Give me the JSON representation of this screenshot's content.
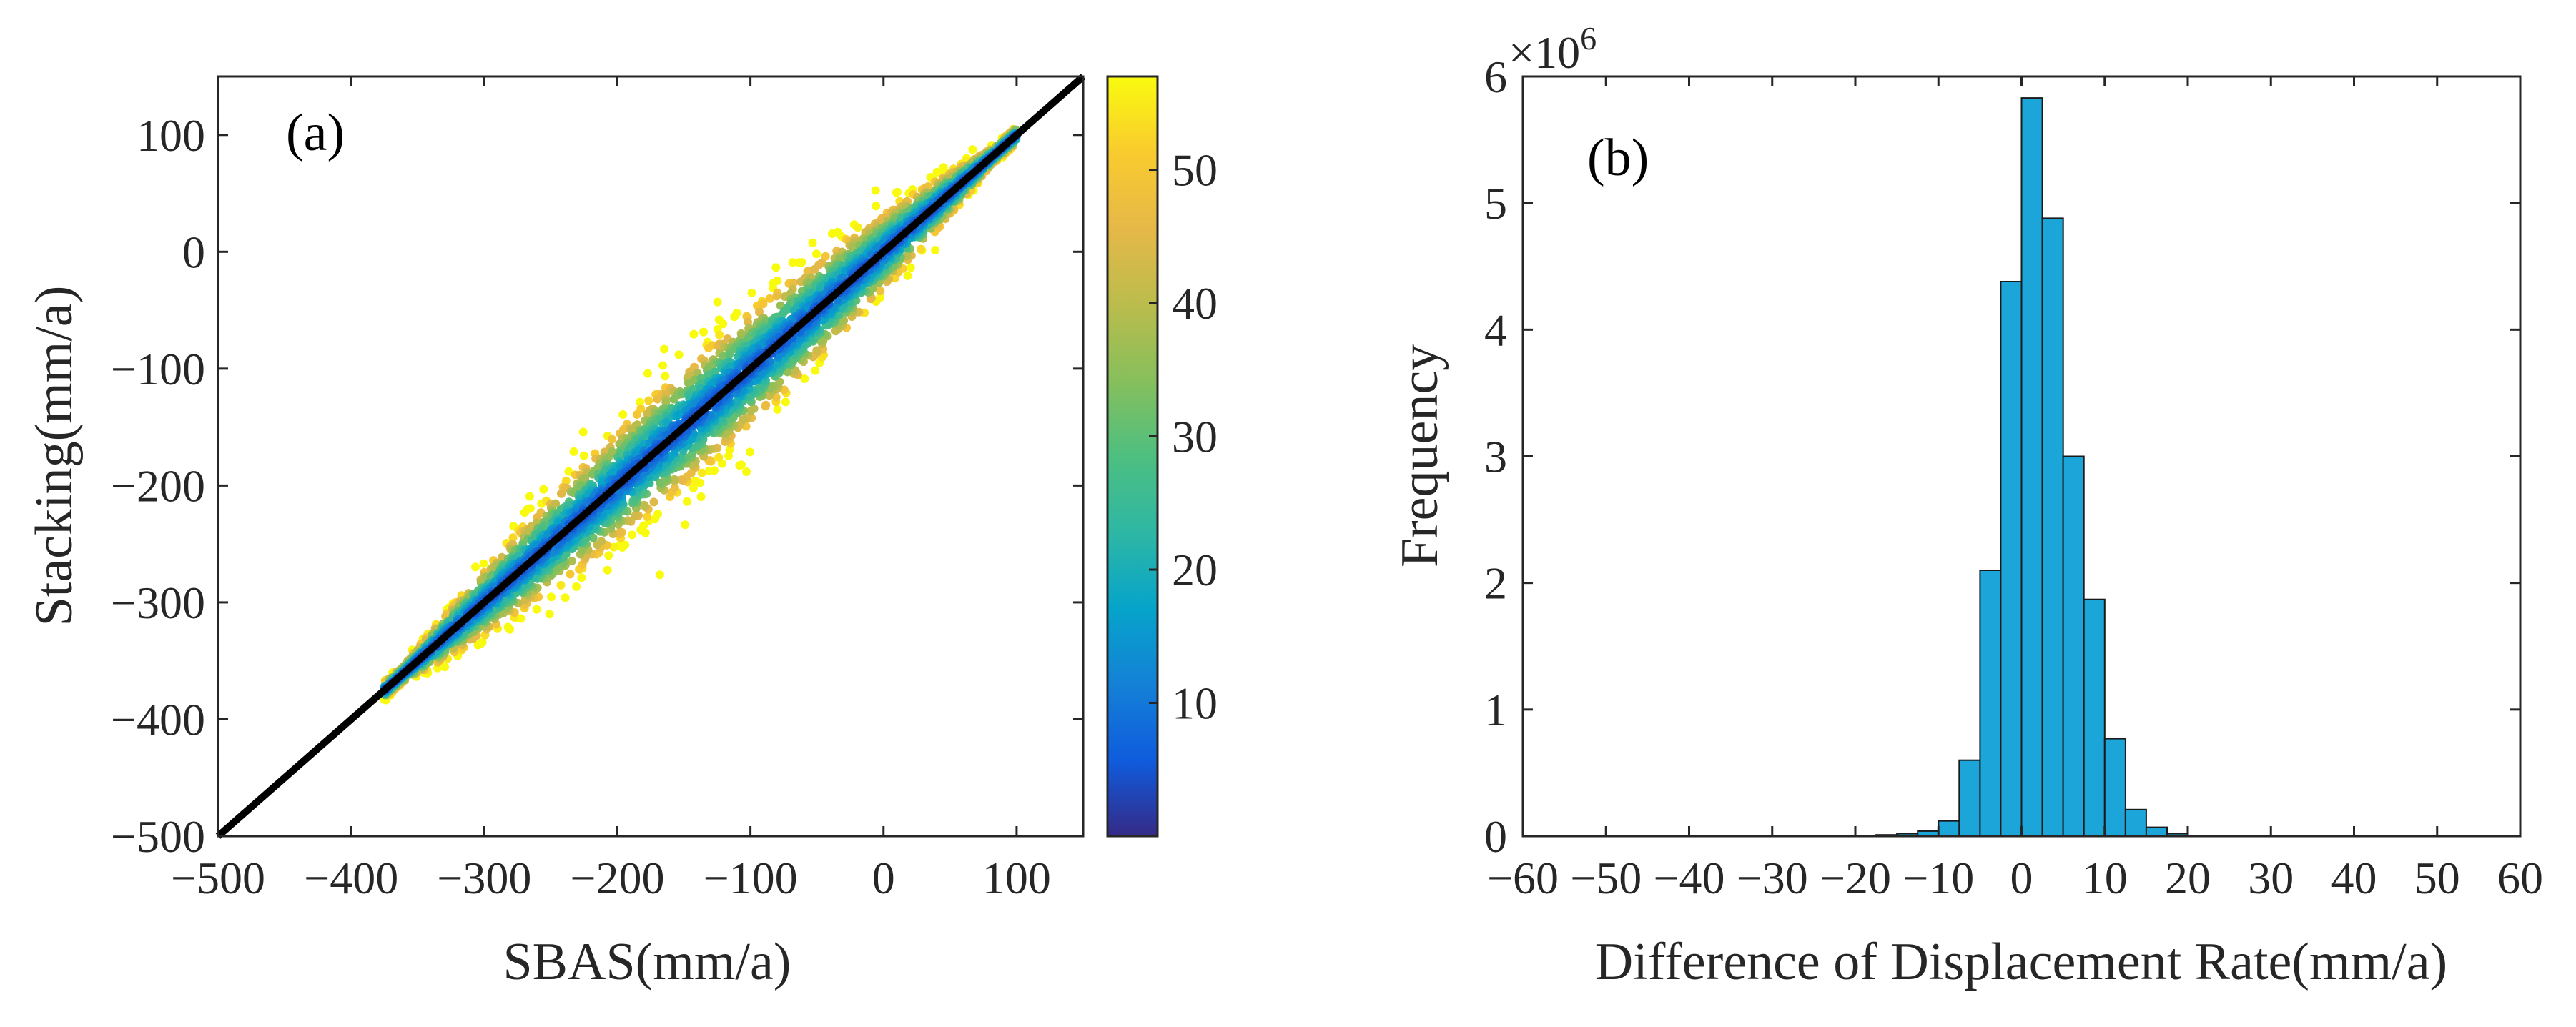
{
  "chart_data": [
    {
      "type": "scatter",
      "panel_label": "(a)",
      "xlabel": "SBAS(mm/a)",
      "ylabel": "Stacking(mm/a)",
      "xlim": [
        -500,
        150
      ],
      "ylim": [
        -500,
        150
      ],
      "xticks": [
        -500,
        -400,
        -300,
        -200,
        -100,
        0,
        100
      ],
      "yticks": [
        -500,
        -400,
        -300,
        -200,
        -100,
        0,
        100
      ],
      "xtick_labels": [
        "−500",
        "−400",
        "−300",
        "−200",
        "−100",
        "0",
        "100"
      ],
      "ytick_labels": [
        "−500",
        "−400",
        "−300",
        "−200",
        "−100",
        "0",
        "100"
      ],
      "point_cloud": {
        "x_range": [
          -375,
          100
        ],
        "relation": "y ≈ x",
        "max_spread": 55,
        "color_by": "point density"
      },
      "reference_line": {
        "type": "y=x",
        "color": "#000000"
      },
      "colorbar": {
        "range": [
          0,
          57
        ],
        "ticks": [
          10,
          20,
          30,
          40,
          50
        ],
        "tick_labels": [
          "10",
          "20",
          "30",
          "40",
          "50"
        ],
        "colormap": "parula"
      }
    },
    {
      "type": "bar",
      "subtype": "histogram",
      "panel_label": "(b)",
      "xlabel": "Difference of Displacement Rate(mm/a)",
      "ylabel": "Frequency",
      "y_multiplier": "×10",
      "y_multiplier_exponent": "6",
      "xlim": [
        -60,
        60
      ],
      "ylim": [
        0,
        6
      ],
      "xticks": [
        -60,
        -50,
        -40,
        -30,
        -20,
        -10,
        0,
        10,
        20,
        30,
        40,
        50,
        60
      ],
      "xtick_labels": [
        "−60",
        "−50",
        "−40",
        "−30",
        "−20",
        "−10",
        "0",
        "10",
        "20",
        "30",
        "40",
        "50",
        "60"
      ],
      "yticks": [
        0,
        1,
        2,
        3,
        4,
        5,
        6
      ],
      "ytick_labels": [
        "0",
        "1",
        "2",
        "3",
        "4",
        "5",
        "6"
      ],
      "bin_width": 2.5,
      "bin_edges": [
        -20,
        -17.5,
        -15,
        -12.5,
        -10,
        -7.5,
        -5,
        -2.5,
        0,
        2.5,
        5,
        7.5,
        10,
        12.5,
        15,
        17.5,
        20,
        22.5
      ],
      "values": [
        0.005,
        0.01,
        0.02,
        0.04,
        0.12,
        0.6,
        2.1,
        4.38,
        5.83,
        4.88,
        3.0,
        1.87,
        0.77,
        0.21,
        0.07,
        0.02,
        0.005
      ],
      "bar_color": "#1BA5D8"
    }
  ]
}
